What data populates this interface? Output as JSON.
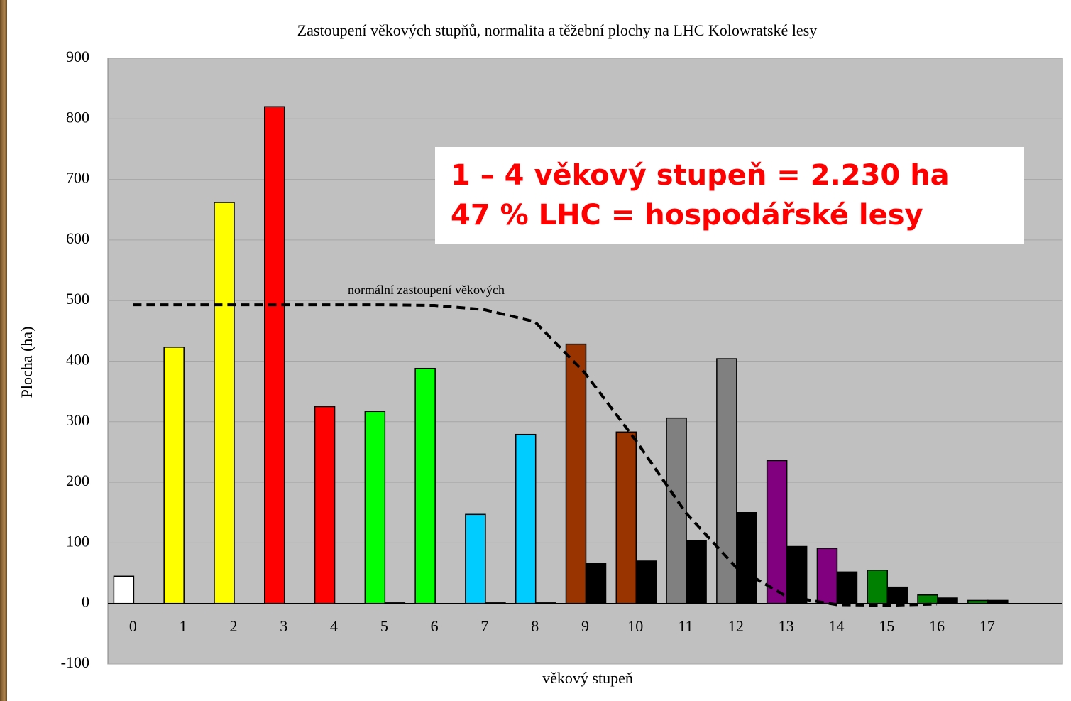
{
  "chart_data": {
    "type": "bar",
    "title": "Zastoupení věkových stupňů, normalita a těžební plochy na LHC Kolowratské lesy",
    "x_label": "věkový stupeň",
    "y_label": "Plocha (ha)",
    "categories": [
      "0",
      "1",
      "2",
      "3",
      "4",
      "5",
      "6",
      "7",
      "8",
      "9",
      "10",
      "11",
      "12",
      "13",
      "14",
      "15",
      "16",
      "17",
      null
    ],
    "series": [
      {
        "values": [
          45,
          423,
          662,
          820,
          325,
          317,
          388,
          147,
          279,
          428,
          283,
          306,
          404,
          236,
          91,
          55,
          14,
          5,
          null
        ],
        "colors": [
          "#ffffff",
          "#ffff00",
          "#ffff00",
          "#ff0000",
          "#ff0000",
          "#00ff00",
          "#00ff00",
          "#00ccff",
          "#00ccff",
          "#993300",
          "#993300",
          "#808080",
          "#808080",
          "#800080",
          "#800080",
          "#008000",
          "#008000",
          "#008000",
          null
        ]
      },
      {
        "values": [
          null,
          null,
          null,
          null,
          null,
          1,
          null,
          1,
          1,
          66,
          70,
          104,
          150,
          94,
          52,
          27,
          9,
          5,
          null
        ],
        "color": "#000000"
      },
      {
        "name": "normální zastoupení věkových",
        "type": "line",
        "dashed": true,
        "color": "#000000",
        "values": [
          493,
          493,
          493,
          493,
          493,
          493,
          492,
          485,
          465,
          380,
          270,
          150,
          60,
          12,
          -2,
          -3,
          -1,
          null,
          null
        ]
      }
    ],
    "ylim": [
      -100,
      900
    ],
    "yticks": [
      -100,
      0,
      100,
      200,
      300,
      400,
      500,
      600,
      700,
      800,
      900
    ],
    "grid": true,
    "annotations": [
      "1 – 4 věkový stupeň = 2.230 ha",
      "47 % LHC = hospodářské lesy"
    ]
  }
}
